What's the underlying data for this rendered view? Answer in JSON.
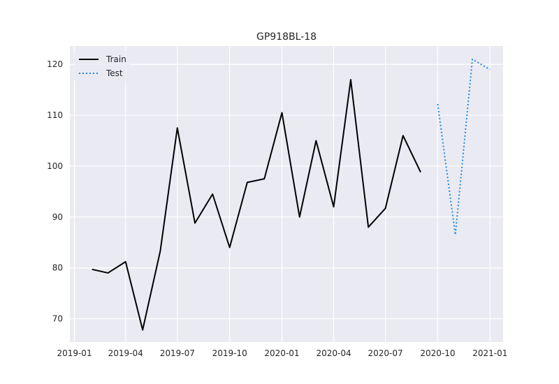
{
  "chart_data": {
    "type": "line",
    "title": "GP918BL-18",
    "xlabel": "",
    "ylabel": "",
    "grid": true,
    "legend_position": "top-left",
    "x_ticks": [
      "2019-01",
      "2019-04",
      "2019-07",
      "2019-10",
      "2020-01",
      "2020-04",
      "2020-07",
      "2020-10",
      "2021-01"
    ],
    "y_ticks": [
      70,
      80,
      90,
      100,
      110,
      120
    ],
    "ylim": [
      65.4,
      123.6
    ],
    "xlim": [
      "2018-12-24",
      "2021-01-24"
    ],
    "series": [
      {
        "name": "Train",
        "color": "#000000",
        "style": "solid",
        "x": [
          "2019-02-01",
          "2019-03-01",
          "2019-04-01",
          "2019-05-01",
          "2019-06-01",
          "2019-07-01",
          "2019-08-01",
          "2019-09-01",
          "2019-10-01",
          "2019-11-01",
          "2019-12-01",
          "2020-01-01",
          "2020-02-01",
          "2020-03-01",
          "2020-04-01",
          "2020-05-01",
          "2020-06-01",
          "2020-07-01",
          "2020-08-01",
          "2020-09-01"
        ],
        "values": [
          79.7,
          79.0,
          81.2,
          67.8,
          83.3,
          107.5,
          88.8,
          94.5,
          84.0,
          96.8,
          97.5,
          110.5,
          90.0,
          105.0,
          92.0,
          117.0,
          88.0,
          91.7,
          106.0,
          98.8
        ]
      },
      {
        "name": "Test",
        "color": "#1e88e5",
        "style": "dotted",
        "x": [
          "2020-10-01",
          "2020-11-01",
          "2020-12-01",
          "2021-01-01"
        ],
        "values": [
          112.2,
          86.5,
          121.0,
          119.0
        ]
      }
    ]
  }
}
